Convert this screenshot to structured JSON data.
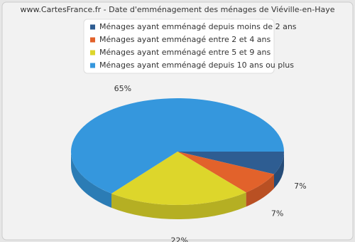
{
  "chart_data": {
    "type": "pie",
    "title": "www.CartesFrance.fr - Date d'emménagement des ménages de Viéville-en-Haye",
    "categories": [
      "Ménages ayant emménagé depuis moins de 2 ans",
      "Ménages ayant emménagé entre 2 et 4 ans",
      "Ménages ayant emménagé entre 5 et 9 ans",
      "Ménages ayant emménagé depuis 10 ans ou plus"
    ],
    "values": [
      7,
      7,
      22,
      65
    ],
    "value_labels": [
      "7%",
      "7%",
      "22%",
      "65%"
    ],
    "colors": [
      "#2e5d92",
      "#e2622b",
      "#ddd62b",
      "#3597dd"
    ]
  }
}
